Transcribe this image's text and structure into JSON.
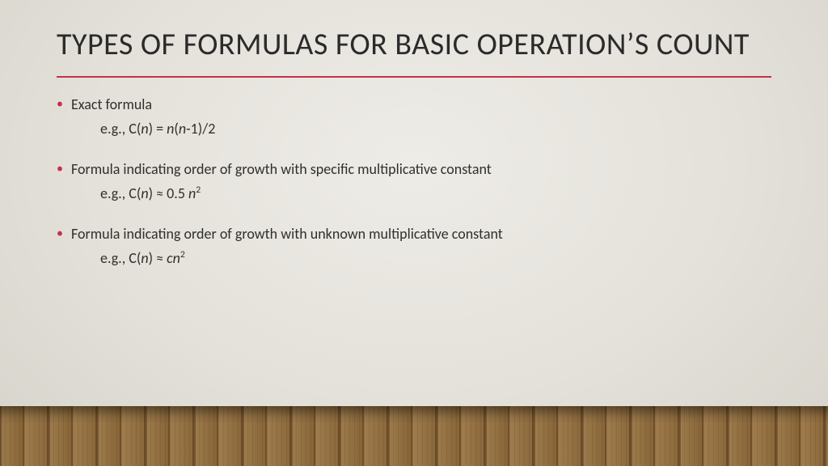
{
  "slide": {
    "title": "TYPES OF FORMULAS FOR BASIC OPERATION’S COUNT",
    "accent_color": "#c4314b",
    "text_color": "#2b2b2b",
    "background_gradient": {
      "inner": "#eeece7",
      "outer": "#d6d3cb"
    },
    "title_fontsize": 38,
    "body_fontsize": 18,
    "bullets": [
      {
        "label": "Exact formula",
        "example_prefix": "e.g., C(",
        "example_var1": "n",
        "example_mid1": ") = ",
        "example_var2": "n",
        "example_mid2": "(",
        "example_var3": "n",
        "example_suffix": "-1)/2"
      },
      {
        "label": "Formula indicating order of growth with specific multiplicative constant",
        "example_prefix": "e.g., C(",
        "example_var1": "n",
        "example_mid1": ") ≈ 0.5 ",
        "example_var2": "n",
        "example_sup": "2"
      },
      {
        "label": "Formula indicating order of growth with unknown multiplicative constant",
        "example_prefix": "e.g., C(",
        "example_var1": "n",
        "example_mid1": ") ≈ ",
        "example_var2": "cn",
        "example_sup": "2"
      }
    ]
  }
}
